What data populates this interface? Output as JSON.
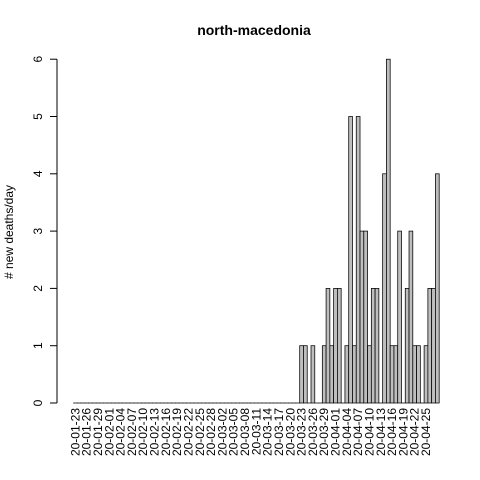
{
  "chart_data": {
    "type": "bar",
    "title": "north-macedonia",
    "xlabel": "",
    "ylabel": "# new deaths/day",
    "ylim": [
      0,
      6
    ],
    "yticks": [
      0,
      1,
      2,
      3,
      4,
      5,
      6
    ],
    "grid": false,
    "bar_fill": "#bebebe",
    "bar_stroke": "#000000",
    "start_date": "2020-01-23",
    "tick_labels": [
      "20-01-23",
      "20-01-26",
      "20-01-29",
      "20-02-01",
      "20-02-04",
      "20-02-07",
      "20-02-10",
      "20-02-13",
      "20-02-16",
      "20-02-19",
      "20-02-22",
      "20-02-25",
      "20-02-28",
      "20-03-02",
      "20-03-05",
      "20-03-08",
      "20-03-11",
      "20-03-14",
      "20-03-17",
      "20-03-20",
      "20-03-23",
      "20-03-26",
      "20-03-29",
      "20-04-01",
      "20-04-04",
      "20-04-07",
      "20-04-10",
      "20-04-13",
      "20-04-16",
      "20-04-19",
      "20-04-22",
      "20-04-25"
    ],
    "values": [
      0,
      0,
      0,
      0,
      0,
      0,
      0,
      0,
      0,
      0,
      0,
      0,
      0,
      0,
      0,
      0,
      0,
      0,
      0,
      0,
      0,
      0,
      0,
      0,
      0,
      0,
      0,
      0,
      0,
      0,
      0,
      0,
      0,
      0,
      0,
      0,
      0,
      0,
      0,
      0,
      0,
      0,
      0,
      0,
      0,
      0,
      0,
      0,
      0,
      0,
      0,
      0,
      0,
      0,
      0,
      0,
      0,
      0,
      0,
      0,
      1,
      1,
      0,
      1,
      0,
      0,
      1,
      2,
      1,
      2,
      2,
      0,
      1,
      5,
      1,
      5,
      3,
      3,
      1,
      2,
      2,
      0,
      4,
      6,
      1,
      1,
      3,
      0,
      2,
      3,
      1,
      1,
      0,
      1,
      2,
      2,
      4
    ]
  }
}
